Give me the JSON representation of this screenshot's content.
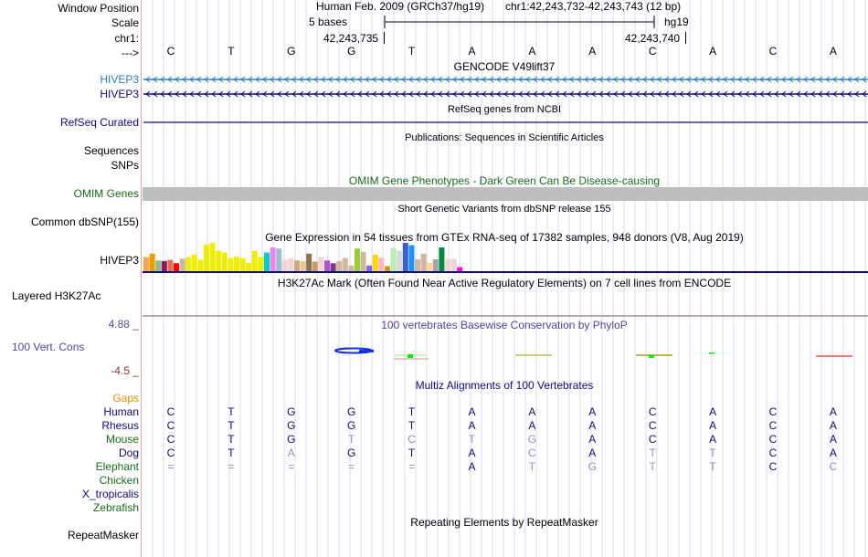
{
  "header": {
    "window_position_label": "Window Position",
    "scale_label": "Scale",
    "chrom_label": "chr1:",
    "strand_label": "--->",
    "assembly_title": "Human Feb. 2009 (GRCh37/hg19)",
    "position": "chr1:42,243,732-42,243,743 (12 bp)",
    "scale_text": "5 bases",
    "scale_db": "hg19",
    "tick_left": "42,243,735",
    "tick_right": "42,243,740",
    "bases": [
      "C",
      "T",
      "G",
      "G",
      "T",
      "A",
      "A",
      "A",
      "C",
      "A",
      "C",
      "A"
    ]
  },
  "tracks": {
    "gencode": {
      "title": "GENCODE V49lift37",
      "labels": [
        "HIVEP3",
        "HIVEP3"
      ],
      "colors": [
        "#2b7bb9",
        "#0c0c78"
      ]
    },
    "refseq": {
      "label": "RefSeq Curated",
      "title": "RefSeq genes from NCBI",
      "color": "#0c0c78"
    },
    "publications": {
      "title": "Publications: Sequences in Scientific Articles",
      "labels": [
        "Sequences",
        "SNPs"
      ]
    },
    "omim": {
      "label": "OMIM Genes",
      "title": "OMIM Gene Phenotypes - Dark Green Can Be Disease-causing",
      "color": "#1a6b1a",
      "bar_color": "#bebebe"
    },
    "dbsnp": {
      "label": "Common dbSNP(155)",
      "title": "Short Genetic Variants from dbSNP release 155"
    },
    "gtex": {
      "label": "HIVEP3",
      "title": "Gene Expression in 54 tissues from GTEx RNA-seq of 17382 samples, 948 donors (V8, Aug 2019)",
      "bars": [
        {
          "h": 0.5,
          "c": "#ffa54f"
        },
        {
          "h": 0.62,
          "c": "#ee9a00"
        },
        {
          "h": 0.38,
          "c": "#8fbc8f"
        },
        {
          "h": 0.36,
          "c": "#8b1c62"
        },
        {
          "h": 0.4,
          "c": "#ee6a50"
        },
        {
          "h": 0.28,
          "c": "#ff0000"
        },
        {
          "h": 0.44,
          "c": "#cdb79e"
        },
        {
          "h": 0.5,
          "c": "#eeee00"
        },
        {
          "h": 0.58,
          "c": "#eeee00"
        },
        {
          "h": 0.4,
          "c": "#eeee00"
        },
        {
          "h": 0.94,
          "c": "#eeee00"
        },
        {
          "h": 1.0,
          "c": "#eeee00"
        },
        {
          "h": 0.72,
          "c": "#eeee00"
        },
        {
          "h": 0.66,
          "c": "#eeee00"
        },
        {
          "h": 0.46,
          "c": "#eeee00"
        },
        {
          "h": 0.52,
          "c": "#eeee00"
        },
        {
          "h": 0.46,
          "c": "#eeee00"
        },
        {
          "h": 0.3,
          "c": "#eeee00"
        },
        {
          "h": 0.72,
          "c": "#eeee00"
        },
        {
          "h": 0.5,
          "c": "#eeee00"
        },
        {
          "h": 0.66,
          "c": "#00cdcd"
        },
        {
          "h": 0.84,
          "c": "#ee82ee"
        },
        {
          "h": 0.8,
          "c": "#9ac0cd"
        },
        {
          "h": 0.4,
          "c": "#eed5d2"
        },
        {
          "h": 0.46,
          "c": "#eed5d2"
        },
        {
          "h": 0.38,
          "c": "#cdaa7d"
        },
        {
          "h": 0.36,
          "c": "#eec591"
        },
        {
          "h": 0.62,
          "c": "#8b7355"
        },
        {
          "h": 0.34,
          "c": "#cd9b63"
        },
        {
          "h": 0.5,
          "c": "#eed5d2"
        },
        {
          "h": 0.38,
          "c": "#b452cd"
        },
        {
          "h": 0.28,
          "c": "#7a378b"
        },
        {
          "h": 0.36,
          "c": "#cdb79e"
        },
        {
          "h": 0.46,
          "c": "#cdb79e"
        },
        {
          "h": 0.2,
          "c": "#cdb79e"
        },
        {
          "h": 0.8,
          "c": "#9acd32"
        },
        {
          "h": 0.68,
          "c": "#cdb79e"
        },
        {
          "h": 0.2,
          "c": "#7b68ee"
        },
        {
          "h": 0.58,
          "c": "#ffd700"
        },
        {
          "h": 0.48,
          "c": "#ffb6c1"
        },
        {
          "h": 0.18,
          "c": "#cd9b1d"
        },
        {
          "h": 0.82,
          "c": "#b4eeb4"
        },
        {
          "h": 0.72,
          "c": "#d9d9d9"
        },
        {
          "h": 1.0,
          "c": "#3a5fcd"
        },
        {
          "h": 0.92,
          "c": "#1e90ff"
        },
        {
          "h": 0.42,
          "c": "#cdb79e"
        },
        {
          "h": 0.62,
          "c": "#cdb79e"
        },
        {
          "h": 0.3,
          "c": "#ffd39b"
        },
        {
          "h": 0.42,
          "c": "#a6a6a6"
        },
        {
          "h": 0.84,
          "c": "#008b45"
        },
        {
          "h": 0.44,
          "c": "#eed5d2"
        },
        {
          "h": 0.44,
          "c": "#eed5d2"
        },
        {
          "h": 0.14,
          "c": "#ff00ff"
        }
      ]
    },
    "h3k27ac": {
      "label": "Layered H3K27Ac",
      "title": "H3K27Ac Mark (Often Found Near Active Regulatory Elements) on 7 cell lines from ENCODE"
    },
    "phylop": {
      "label": "100 Vert. Cons",
      "title": "100 vertebrates Basewise Conservation by PhyloP",
      "max": "4.88 _",
      "min": "-4.5 _",
      "color": "#4a4a9a",
      "min_color": "#8b3030"
    },
    "multiz": {
      "title": "Multiz Alignments of 100 Vertebrates",
      "gaps_label": "Gaps",
      "species": [
        {
          "name": "Human",
          "color": "#0c0c78",
          "bases": [
            "C",
            "T",
            "G",
            "G",
            "T",
            "A",
            "A",
            "A",
            "C",
            "A",
            "C",
            "A"
          ],
          "diff": [
            0,
            0,
            0,
            0,
            0,
            0,
            0,
            0,
            0,
            0,
            0,
            0
          ]
        },
        {
          "name": "Rhesus",
          "color": "#0c0c78",
          "bases": [
            "C",
            "T",
            "G",
            "G",
            "T",
            "A",
            "A",
            "A",
            "C",
            "A",
            "C",
            "A"
          ],
          "diff": [
            0,
            0,
            0,
            0,
            0,
            0,
            0,
            0,
            0,
            0,
            0,
            0
          ]
        },
        {
          "name": "Mouse",
          "color": "#1a6b1a",
          "bases": [
            "C",
            "T",
            "G",
            "T",
            "C",
            "T",
            "G",
            "A",
            "C",
            "A",
            "C",
            "A"
          ],
          "diff": [
            0,
            0,
            0,
            1,
            1,
            1,
            1,
            0,
            0,
            0,
            0,
            0
          ]
        },
        {
          "name": "Dog",
          "color": "#0c0c78",
          "bases": [
            "C",
            "T",
            "A",
            "G",
            "T",
            "A",
            "C",
            "A",
            "T",
            "T",
            "C",
            "A"
          ],
          "diff": [
            0,
            0,
            1,
            0,
            0,
            0,
            1,
            0,
            1,
            1,
            0,
            0
          ]
        },
        {
          "name": "Elephant",
          "color": "#1a6b1a",
          "bases": [
            "=",
            "=",
            "=",
            "=",
            "=",
            "A",
            "T",
            "G",
            "T",
            "T",
            "C",
            "C"
          ],
          "diff": [
            1,
            1,
            1,
            1,
            1,
            0,
            1,
            1,
            1,
            1,
            0,
            1
          ]
        },
        {
          "name": "Chicken",
          "color": "#1a6b1a",
          "bases": [],
          "diff": []
        },
        {
          "name": "X_tropicalis",
          "color": "#0c0c78",
          "bases": [],
          "diff": []
        },
        {
          "name": "Zebrafish",
          "color": "#1a6b1a",
          "bases": [],
          "diff": []
        }
      ]
    },
    "repeatmasker": {
      "label": "RepeatMasker",
      "title": "Repeating Elements by RepeatMasker"
    }
  }
}
